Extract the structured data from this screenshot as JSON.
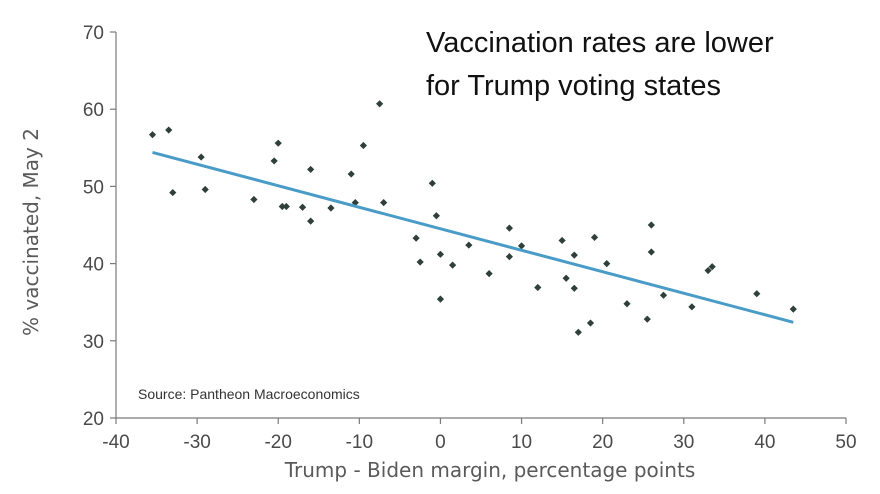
{
  "chart_data": {
    "type": "scatter",
    "title_lines": [
      "Vaccination rates are lower",
      "for Trump voting states"
    ],
    "xlabel": "Trump - Biden margin, percentage points",
    "ylabel": "% vaccinated,  May 2",
    "source": "Source: Pantheon Macroeconomics",
    "xlim": [
      -40,
      50
    ],
    "ylim": [
      20,
      70
    ],
    "x_ticks": [
      -40,
      -30,
      -20,
      -10,
      0,
      10,
      20,
      30,
      40,
      50
    ],
    "y_ticks": [
      20,
      30,
      40,
      50,
      60,
      70
    ],
    "grid": false,
    "marker_color": "#2f3f3a",
    "trend_color": "#4a9cc8",
    "trendline": {
      "x": [
        -35.5,
        43.5
      ],
      "y": [
        54.4,
        32.4
      ]
    },
    "points": [
      {
        "x": -35.5,
        "y": 56.7
      },
      {
        "x": -33.5,
        "y": 57.3
      },
      {
        "x": -33.0,
        "y": 49.2
      },
      {
        "x": -29.5,
        "y": 53.8
      },
      {
        "x": -29.0,
        "y": 49.6
      },
      {
        "x": -23.0,
        "y": 48.3
      },
      {
        "x": -20.5,
        "y": 53.3
      },
      {
        "x": -20.0,
        "y": 55.6
      },
      {
        "x": -19.5,
        "y": 47.4
      },
      {
        "x": -19.0,
        "y": 47.4
      },
      {
        "x": -17.0,
        "y": 47.3
      },
      {
        "x": -16.0,
        "y": 45.5
      },
      {
        "x": -16.0,
        "y": 52.2
      },
      {
        "x": -13.5,
        "y": 47.2
      },
      {
        "x": -11.0,
        "y": 51.6
      },
      {
        "x": -10.5,
        "y": 47.9
      },
      {
        "x": -9.5,
        "y": 55.3
      },
      {
        "x": -7.5,
        "y": 60.7
      },
      {
        "x": -7.0,
        "y": 47.9
      },
      {
        "x": -3.0,
        "y": 43.3
      },
      {
        "x": -2.5,
        "y": 40.2
      },
      {
        "x": -1.0,
        "y": 50.4
      },
      {
        "x": -0.5,
        "y": 46.2
      },
      {
        "x": 0.0,
        "y": 41.2
      },
      {
        "x": 0.0,
        "y": 35.4
      },
      {
        "x": 1.5,
        "y": 39.8
      },
      {
        "x": 3.5,
        "y": 42.4
      },
      {
        "x": 6.0,
        "y": 38.7
      },
      {
        "x": 8.5,
        "y": 44.6
      },
      {
        "x": 8.5,
        "y": 40.9
      },
      {
        "x": 10.0,
        "y": 42.3
      },
      {
        "x": 12.0,
        "y": 36.9
      },
      {
        "x": 15.0,
        "y": 43.0
      },
      {
        "x": 15.5,
        "y": 38.1
      },
      {
        "x": 16.5,
        "y": 41.1
      },
      {
        "x": 16.5,
        "y": 36.8
      },
      {
        "x": 17.0,
        "y": 31.1
      },
      {
        "x": 18.5,
        "y": 32.3
      },
      {
        "x": 19.0,
        "y": 43.4
      },
      {
        "x": 20.5,
        "y": 40.0
      },
      {
        "x": 23.0,
        "y": 34.8
      },
      {
        "x": 25.5,
        "y": 32.8
      },
      {
        "x": 26.0,
        "y": 41.5
      },
      {
        "x": 26.0,
        "y": 45.0
      },
      {
        "x": 27.5,
        "y": 35.9
      },
      {
        "x": 31.0,
        "y": 34.4
      },
      {
        "x": 33.0,
        "y": 39.1
      },
      {
        "x": 33.5,
        "y": 39.6
      },
      {
        "x": 39.0,
        "y": 36.1
      },
      {
        "x": 43.5,
        "y": 34.1
      }
    ]
  }
}
